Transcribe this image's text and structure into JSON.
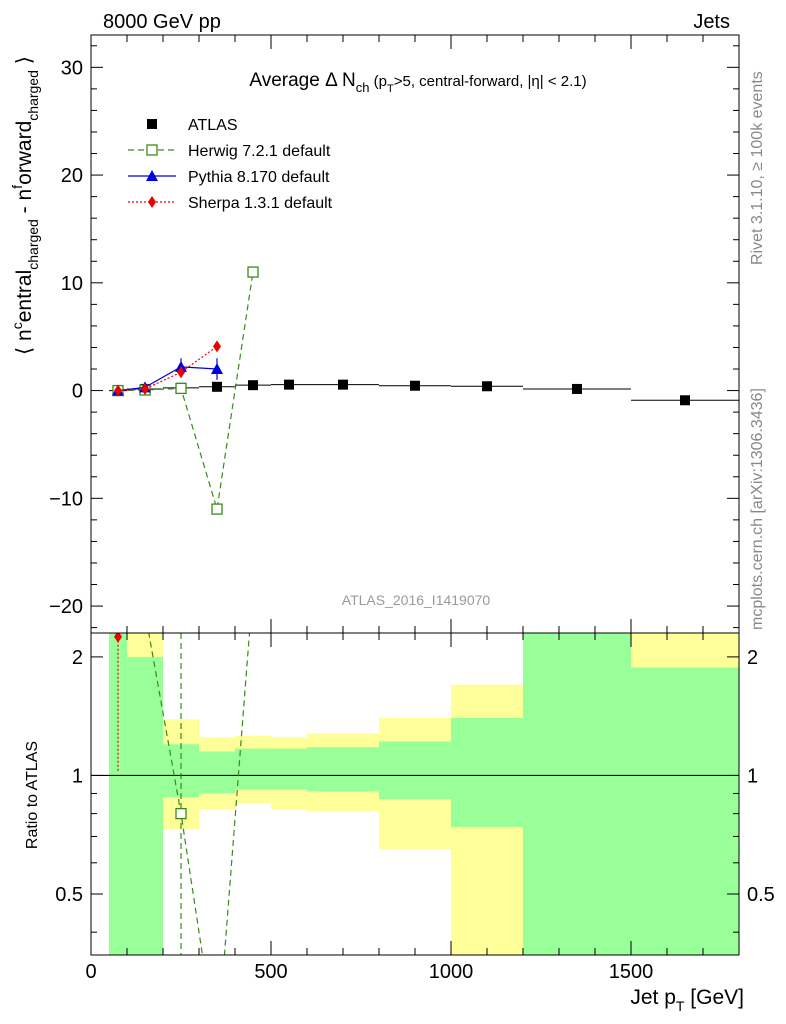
{
  "header": {
    "left": "8000 GeV pp",
    "right": "Jets"
  },
  "side_text": {
    "rivet": "Rivet 3.1.10, ≥ 100k events",
    "mcplots": "mcplots.cern.ch [arXiv:1306.3436]"
  },
  "chart_data": [
    {
      "type": "scatter",
      "title": "Average Δ N_ch (p_T>5, central-forward, |η| < 2.1)",
      "ylabel": "⟨ n^central_charged - n^forward_charged ⟩",
      "xlabel": "Jet p_T [GeV]",
      "watermark": "ATLAS_2016_I1419070",
      "xlim": [
        0,
        1800
      ],
      "ylim": [
        -22.5,
        33
      ],
      "yticks": [
        -20,
        -10,
        0,
        10,
        20,
        30
      ],
      "legend_position": "top-left",
      "series": [
        {
          "name": "ATLAS",
          "style": "data",
          "color": "#000000",
          "marker": "filled-square",
          "x": [
            75,
            150,
            250,
            350,
            450,
            550,
            700,
            900,
            1100,
            1350,
            1650
          ],
          "y": [
            0.0,
            0.15,
            0.25,
            0.35,
            0.5,
            0.55,
            0.55,
            0.45,
            0.4,
            0.15,
            -0.9
          ],
          "x_lo": [
            50,
            100,
            200,
            300,
            400,
            500,
            600,
            800,
            1000,
            1200,
            1500
          ],
          "x_hi": [
            100,
            200,
            300,
            400,
            500,
            600,
            800,
            1000,
            1200,
            1500,
            1800
          ]
        },
        {
          "name": "Herwig 7.2.1 default",
          "style": "dashed",
          "color": "#3a8a1a",
          "marker": "open-square",
          "x": [
            75,
            150,
            250,
            350,
            450
          ],
          "y": [
            0.0,
            0.05,
            0.2,
            -11.0,
            11.0
          ]
        },
        {
          "name": "Pythia 8.170 default",
          "style": "solid",
          "color": "#0000dd",
          "marker": "filled-triangle",
          "x": [
            75,
            150,
            250,
            350
          ],
          "y": [
            0.0,
            0.3,
            2.2,
            2.0
          ],
          "err": [
            0.1,
            0.3,
            0.8,
            1.0
          ]
        },
        {
          "name": "Sherpa 1.3.1 default",
          "style": "dotted",
          "color": "#ee0000",
          "marker": "filled-diamond",
          "x": [
            75,
            150,
            250,
            350
          ],
          "y": [
            0.0,
            0.15,
            1.7,
            4.1
          ]
        }
      ]
    },
    {
      "type": "line",
      "ylabel": "Ratio to ATLAS",
      "xlabel": "Jet p_T [GeV]",
      "xlim": [
        0,
        1800
      ],
      "ylim": [
        0.35,
        2.3
      ],
      "yticks": [
        0.5,
        1,
        2
      ],
      "ytick_labels": [
        "0.5",
        "1",
        "2"
      ],
      "xticks": [
        0,
        500,
        1000,
        1500
      ],
      "xtick_labels": [
        "0",
        "500",
        "1000",
        "1500"
      ],
      "bands": [
        {
          "x_lo": 50,
          "x_hi": 100,
          "inner": [
            0.35,
            2.3
          ],
          "outer": [
            0.35,
            2.3
          ]
        },
        {
          "x_lo": 100,
          "x_hi": 200,
          "inner": [
            0.35,
            2.0
          ],
          "outer": [
            0.35,
            2.3
          ]
        },
        {
          "x_lo": 200,
          "x_hi": 300,
          "inner": [
            0.88,
            1.2
          ],
          "outer": [
            0.73,
            1.39
          ]
        },
        {
          "x_lo": 300,
          "x_hi": 400,
          "inner": [
            0.9,
            1.15
          ],
          "outer": [
            0.82,
            1.25
          ]
        },
        {
          "x_lo": 400,
          "x_hi": 500,
          "inner": [
            0.92,
            1.17
          ],
          "outer": [
            0.85,
            1.26
          ]
        },
        {
          "x_lo": 500,
          "x_hi": 600,
          "inner": [
            0.92,
            1.17
          ],
          "outer": [
            0.82,
            1.25
          ]
        },
        {
          "x_lo": 600,
          "x_hi": 800,
          "inner": [
            0.91,
            1.18
          ],
          "outer": [
            0.81,
            1.28
          ]
        },
        {
          "x_lo": 800,
          "x_hi": 1000,
          "inner": [
            0.87,
            1.22
          ],
          "outer": [
            0.65,
            1.4
          ]
        },
        {
          "x_lo": 1000,
          "x_hi": 1200,
          "inner": [
            0.74,
            1.4
          ],
          "outer": [
            0.35,
            1.7
          ]
        },
        {
          "x_lo": 1200,
          "x_hi": 1500,
          "inner": [
            0.35,
            2.3
          ],
          "outer": [
            0.35,
            2.3
          ]
        },
        {
          "x_lo": 1500,
          "x_hi": 1800,
          "inner": [
            0.35,
            1.88
          ],
          "outer": [
            0.35,
            2.3
          ]
        }
      ],
      "ratio_series": [
        {
          "name": "Herwig 7.2.1 default",
          "color": "#3a8a1a",
          "style": "dashed",
          "x": [
            150,
            250,
            350,
            450
          ],
          "y": [
            2.6,
            0.8,
            0.2,
            3.0
          ]
        },
        {
          "name": "Sherpa 1.3.1 default",
          "color": "#ee0000",
          "style": "dotted",
          "x": [
            75
          ],
          "y": [
            2.25
          ]
        }
      ],
      "colors": {
        "inner_band": "#99ff99",
        "outer_band": "#ffff99"
      }
    }
  ]
}
